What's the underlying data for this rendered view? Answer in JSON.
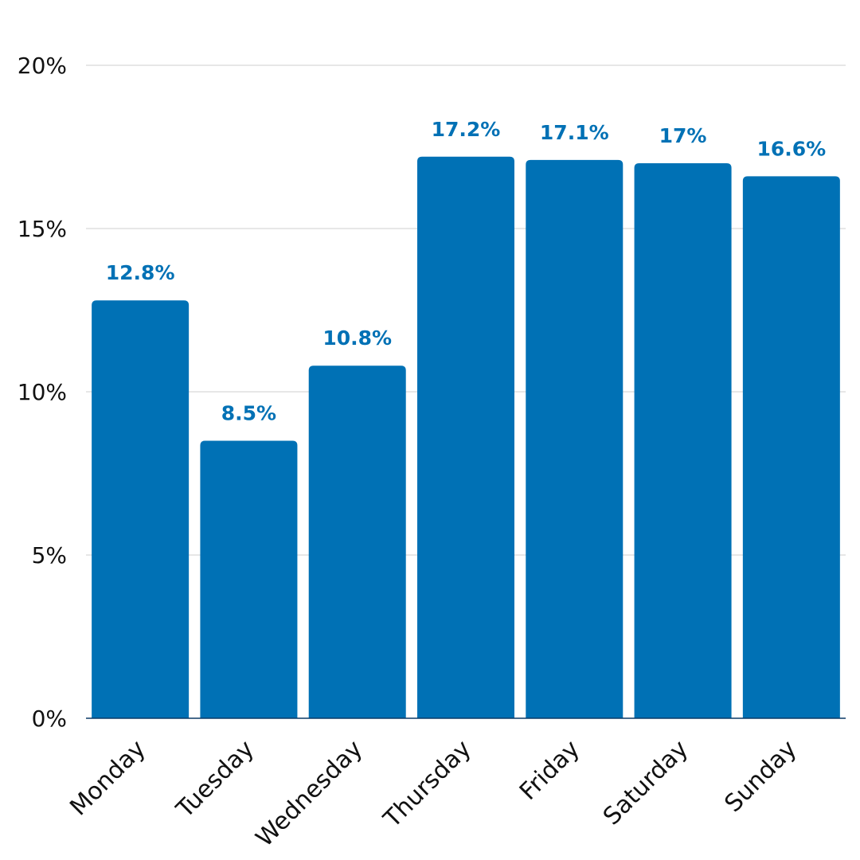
{
  "chart_data": {
    "type": "bar",
    "title": "",
    "xlabel": "",
    "ylabel": "",
    "categories": [
      "Monday",
      "Tuesday",
      "Wednesday",
      "Thursday",
      "Friday",
      "Saturday",
      "Sunday"
    ],
    "values": [
      12.8,
      8.5,
      10.8,
      17.2,
      17.1,
      17.0,
      16.6
    ],
    "data_labels": [
      "12.8%",
      "8.5%",
      "10.8%",
      "17.2%",
      "17.1%",
      "17%",
      "16.6%"
    ],
    "ylim": [
      0,
      20
    ],
    "yticks": [
      0,
      5,
      10,
      15,
      20
    ],
    "ytick_labels": [
      "0%",
      "5%",
      "10%",
      "15%",
      "20%"
    ],
    "grid": true,
    "legend": "none",
    "bar_color": "#0071b5",
    "label_color": "#0071b5"
  }
}
